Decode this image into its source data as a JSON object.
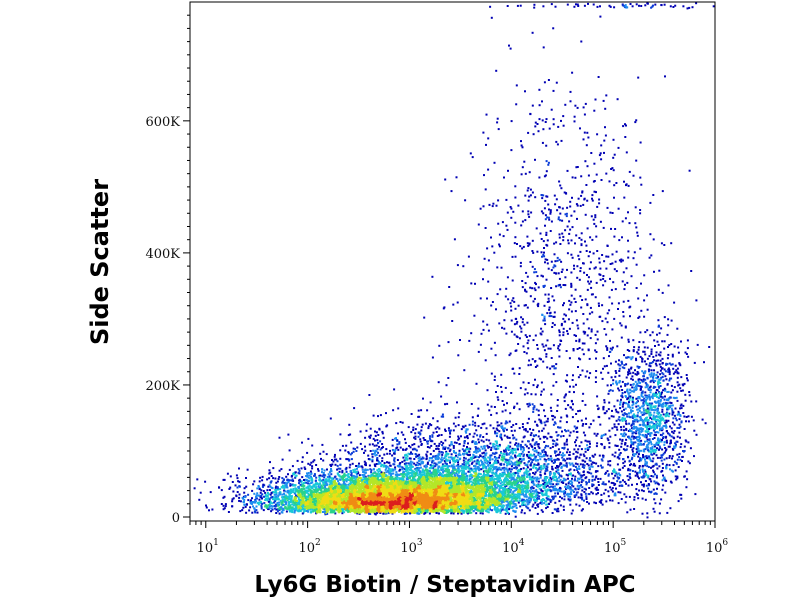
{
  "chart_data": {
    "type": "scatter",
    "subtype": "flow-cytometry-density-dot-plot",
    "title": "",
    "xlabel": "Ly6G Biotin / Steptavidin APC",
    "ylabel": "Side Scatter",
    "x_scale": "log",
    "y_scale": "linear",
    "xlim": [
      7,
      1000000
    ],
    "ylim": [
      0,
      780000
    ],
    "x_ticks": [
      {
        "value": 10,
        "base": "10",
        "exp": "1"
      },
      {
        "value": 100,
        "base": "10",
        "exp": "2"
      },
      {
        "value": 1000,
        "base": "10",
        "exp": "3"
      },
      {
        "value": 10000,
        "base": "10",
        "exp": "4"
      },
      {
        "value": 100000,
        "base": "10",
        "exp": "5"
      },
      {
        "value": 1000000,
        "base": "10",
        "exp": "6"
      }
    ],
    "y_ticks": [
      {
        "value": 0,
        "label": "0"
      },
      {
        "value": 200000,
        "label": "200K"
      },
      {
        "value": 400000,
        "label": "400K"
      },
      {
        "value": 600000,
        "label": "600K"
      }
    ],
    "grid": false,
    "legend": "none",
    "density_colors": [
      "#0000b4",
      "#0a3cd8",
      "#1e8cf0",
      "#18c8d8",
      "#28d28c",
      "#b4e628",
      "#f0dc14",
      "#f08c14",
      "#dc1e1e"
    ],
    "populations": [
      {
        "name": "main cluster",
        "x_center": 700,
        "y_center": 22000,
        "log_x_spread": 0.6,
        "y_spread": 25000,
        "relative_count": 9000
      },
      {
        "name": "broad tail",
        "x_center": 5000,
        "y_center": 60000,
        "log_x_spread": 0.7,
        "y_spread": 50000,
        "relative_count": 3000
      },
      {
        "name": "high-x cluster",
        "x_center": 220000,
        "y_center": 150000,
        "log_x_spread": 0.18,
        "y_spread": 60000,
        "relative_count": 1300
      },
      {
        "name": "high side-scatter spread",
        "x_center": 30000,
        "y_center": 350000,
        "log_x_spread": 0.45,
        "y_spread": 150000,
        "relative_count": 1100
      },
      {
        "name": "saturated events at top",
        "x_center": 100000,
        "y_center": 776000,
        "log_x_spread": 0.6,
        "y_spread": 2000,
        "relative_count": 60
      }
    ]
  }
}
